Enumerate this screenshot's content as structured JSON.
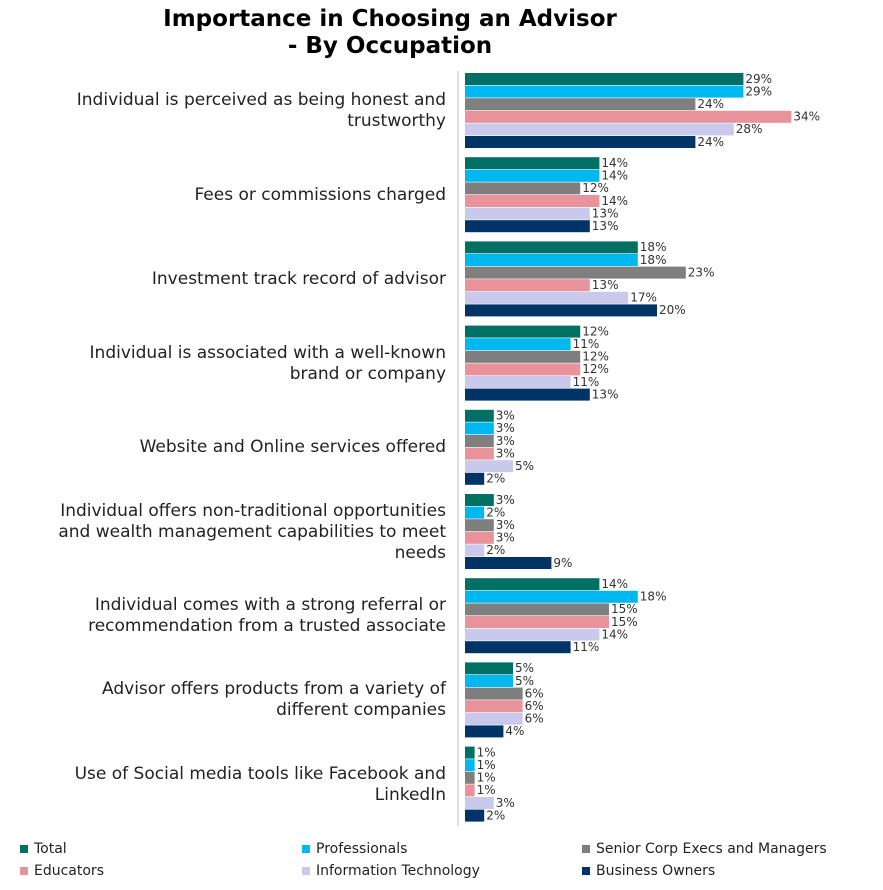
{
  "chart_data": {
    "type": "hbar",
    "title": "Importance in Choosing an Advisor\n- By Occupation",
    "categories": [
      "Individual is perceived as being honest and trustworthy",
      "Fees or commissions charged",
      "Investment track record of advisor",
      "Individual is associated with a well-known brand or company",
      "Website and Online services offered",
      "Individual offers non-traditional opportunities and wealth management capabilities to meet needs",
      "Individual comes with a strong referral or recommendation from a trusted associate",
      "Advisor offers products from a variety of different companies",
      "Use of Social media tools like Facebook and LinkedIn"
    ],
    "series": [
      {
        "name": "Total",
        "color": "#006f64",
        "values": [
          29,
          14,
          18,
          12,
          3,
          3,
          14,
          5,
          1
        ],
        "value_labels": [
          "29%",
          "14%",
          "18%",
          "12%",
          "3%",
          "3%",
          "14%",
          "5%",
          "1%"
        ]
      },
      {
        "name": "Professionals",
        "color": "#00b8f0",
        "values": [
          29,
          14,
          18,
          11,
          3,
          2,
          18,
          5,
          1
        ],
        "value_labels": [
          "29%",
          "14%",
          "18%",
          "11%",
          "3%",
          "2%",
          "18%",
          "5%",
          "1%"
        ]
      },
      {
        "name": "Senior Corp Execs and Managers",
        "color": "#7f7f7f",
        "values": [
          24,
          12,
          23,
          12,
          3,
          3,
          15,
          6,
          1
        ],
        "value_labels": [
          "24%",
          "12%",
          "23%",
          "12%",
          "3%",
          "3%",
          "15%",
          "6%",
          "1%"
        ]
      },
      {
        "name": "Educators",
        "color": "#e8939b",
        "values": [
          34,
          14,
          13,
          12,
          3,
          3,
          15,
          6,
          1
        ],
        "value_labels": [
          "34%",
          "14%",
          "13%",
          "12%",
          "3%",
          "3%",
          "15%",
          "6%",
          "1%"
        ]
      },
      {
        "name": "Information Technology",
        "color": "#c9c9ec",
        "values": [
          28,
          13,
          17,
          11,
          5,
          2,
          14,
          6,
          3
        ],
        "value_labels": [
          "28%",
          "13%",
          "17%",
          "11%",
          "5%",
          "2%",
          "14%",
          "6%",
          "3%"
        ]
      },
      {
        "name": "Business Owners",
        "color": "#003366",
        "values": [
          24,
          13,
          20,
          13,
          2,
          9,
          11,
          4,
          2
        ],
        "value_labels": [
          "24%",
          "13%",
          "20%",
          "13%",
          "2%",
          "9%",
          "11%",
          "4%",
          "2%"
        ]
      }
    ],
    "legend": "bottom"
  }
}
